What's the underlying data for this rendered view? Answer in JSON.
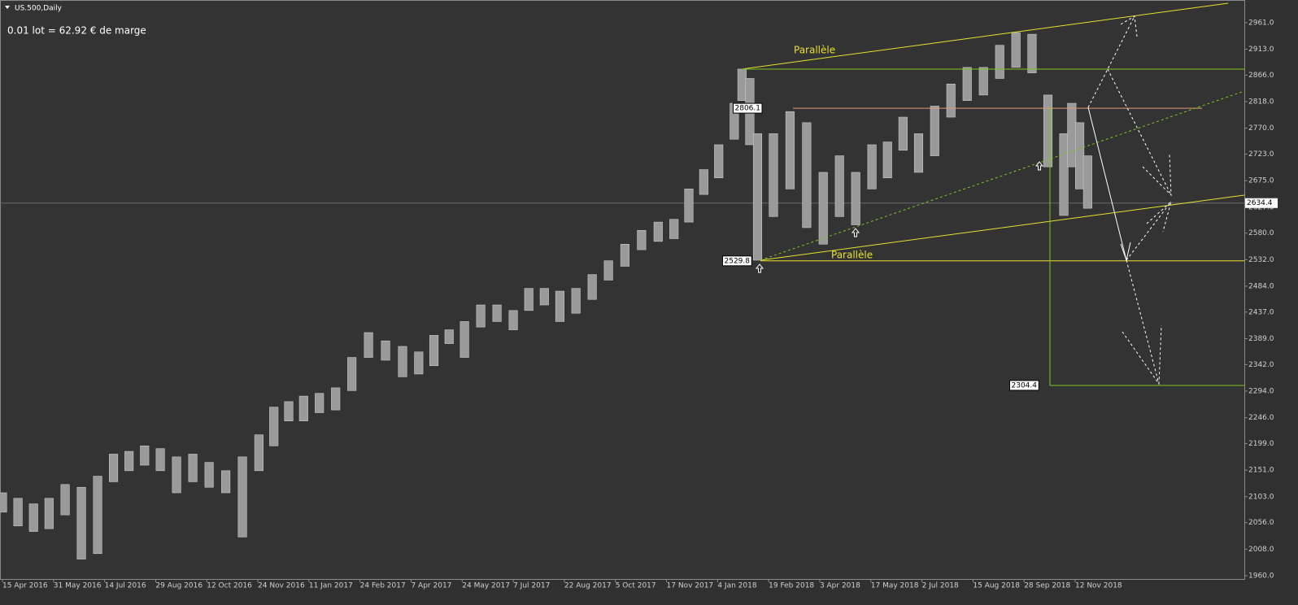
{
  "chart_data": {
    "type": "ohlc",
    "title": "US.500,Daily",
    "subtitle": "0.01 lot = 62.92 € de marge",
    "color": "#9a9a9a",
    "x": [
      "2016-04-15",
      "2016-04-29",
      "2016-05-13",
      "2016-05-27",
      "2016-06-10",
      "2016-06-24",
      "2016-07-08",
      "2016-07-22",
      "2016-08-05",
      "2016-08-19",
      "2016-09-02",
      "2016-09-16",
      "2016-09-30",
      "2016-10-14",
      "2016-10-28",
      "2016-11-11",
      "2016-11-25",
      "2016-12-09",
      "2016-12-23",
      "2017-01-06",
      "2017-01-20",
      "2017-02-03",
      "2017-02-17",
      "2017-03-03",
      "2017-03-17",
      "2017-03-31",
      "2017-04-14",
      "2017-04-28",
      "2017-05-12",
      "2017-05-26",
      "2017-06-09",
      "2017-06-23",
      "2017-07-07",
      "2017-07-21",
      "2017-08-04",
      "2017-08-18",
      "2017-09-01",
      "2017-09-15",
      "2017-09-29",
      "2017-10-13",
      "2017-10-27",
      "2017-11-10",
      "2017-11-24",
      "2017-12-08",
      "2017-12-22",
      "2018-01-05",
      "2018-01-19",
      "2018-01-26",
      "2018-02-02",
      "2018-02-09",
      "2018-02-23",
      "2018-03-09",
      "2018-03-23",
      "2018-04-06",
      "2018-04-20",
      "2018-05-04",
      "2018-05-18",
      "2018-06-01",
      "2018-06-15",
      "2018-06-29",
      "2018-07-13",
      "2018-07-27",
      "2018-08-10",
      "2018-08-24",
      "2018-09-07",
      "2018-09-21",
      "2018-10-05",
      "2018-10-19",
      "2018-11-02",
      "2018-11-09",
      "2018-11-16",
      "2018-11-23"
    ],
    "high": [
      2110,
      2100,
      2090,
      2100,
      2125,
      2120,
      2140,
      2180,
      2185,
      2195,
      2190,
      2175,
      2180,
      2165,
      2150,
      2175,
      2215,
      2265,
      2275,
      2285,
      2290,
      2300,
      2355,
      2400,
      2385,
      2375,
      2365,
      2395,
      2405,
      2420,
      2450,
      2450,
      2440,
      2480,
      2480,
      2475,
      2480,
      2505,
      2530,
      2560,
      2585,
      2600,
      2605,
      2660,
      2695,
      2740,
      2815,
      2877,
      2860,
      2760,
      2760,
      2800,
      2780,
      2690,
      2720,
      2690,
      2740,
      2745,
      2790,
      2760,
      2810,
      2850,
      2880,
      2880,
      2920,
      2943,
      2940,
      2830,
      2760,
      2815,
      2780,
      2720
    ],
    "low": [
      2075,
      2050,
      2040,
      2045,
      2070,
      1990,
      2000,
      2130,
      2150,
      2160,
      2150,
      2110,
      2130,
      2120,
      2110,
      2030,
      2150,
      2195,
      2240,
      2240,
      2255,
      2260,
      2295,
      2355,
      2350,
      2320,
      2325,
      2340,
      2380,
      2355,
      2410,
      2420,
      2405,
      2440,
      2450,
      2420,
      2435,
      2460,
      2495,
      2520,
      2550,
      2565,
      2570,
      2600,
      2650,
      2680,
      2750,
      2820,
      2740,
      2531,
      2610,
      2660,
      2590,
      2560,
      2610,
      2595,
      2660,
      2680,
      2730,
      2690,
      2720,
      2790,
      2820,
      2830,
      2860,
      2880,
      2870,
      2700,
      2612,
      2700,
      2660,
      2625
    ],
    "ylim": [
      1954,
      3002
    ],
    "yticks": [
      {
        "value": 2961,
        "label": "2961.0"
      },
      {
        "value": 2913,
        "label": "2913.0"
      },
      {
        "value": 2866,
        "label": "2866.0"
      },
      {
        "value": 2818,
        "label": "2818.0"
      },
      {
        "value": 2770,
        "label": "2770.0"
      },
      {
        "value": 2723,
        "label": "2723.0"
      },
      {
        "value": 2675,
        "label": "2675.0"
      },
      {
        "value": 2627,
        "label": "2627.0"
      },
      {
        "value": 2580,
        "label": "2580.0"
      },
      {
        "value": 2532,
        "label": "2532.0"
      },
      {
        "value": 2484,
        "label": "2484.0"
      },
      {
        "value": 2437,
        "label": "2437.0"
      },
      {
        "value": 2389,
        "label": "2389.0"
      },
      {
        "value": 2342,
        "label": "2342.0"
      },
      {
        "value": 2294,
        "label": "2294.0"
      },
      {
        "value": 2246,
        "label": "2246.0"
      },
      {
        "value": 2199,
        "label": "2199.0"
      },
      {
        "value": 2151,
        "label": "2151.0"
      },
      {
        "value": 2103,
        "label": "2103.0"
      },
      {
        "value": 2056,
        "label": "2056.0"
      },
      {
        "value": 2008,
        "label": "2008.0"
      },
      {
        "value": 1960,
        "label": "1960.0"
      }
    ],
    "xticks": [
      {
        "value": "2016-04-15",
        "label": "15 Apr 2016"
      },
      {
        "value": "2016-05-31",
        "label": "31 May 2016"
      },
      {
        "value": "2016-07-14",
        "label": "14 Jul 2016"
      },
      {
        "value": "2016-08-29",
        "label": "29 Aug 2016"
      },
      {
        "value": "2016-10-12",
        "label": "12 Oct 2016"
      },
      {
        "value": "2016-11-24",
        "label": "24 Nov 2016"
      },
      {
        "value": "2017-01-11",
        "label": "11 Jan 2017"
      },
      {
        "value": "2017-02-24",
        "label": "24 Feb 2017"
      },
      {
        "value": "2017-04-07",
        "label": "7 Apr 2017"
      },
      {
        "value": "2017-05-24",
        "label": "24 May 2017"
      },
      {
        "value": "2017-07-07",
        "label": "7 Jul 2017"
      },
      {
        "value": "2017-08-22",
        "label": "22 Aug 2017"
      },
      {
        "value": "2017-10-05",
        "label": "5 Oct 2017"
      },
      {
        "value": "2017-11-17",
        "label": "17 Nov 2017"
      },
      {
        "value": "2018-01-04",
        "label": "4 Jan 2018"
      },
      {
        "value": "2018-02-19",
        "label": "19 Feb 2018"
      },
      {
        "value": "2018-04-03",
        "label": "3 Apr 2018"
      },
      {
        "value": "2018-05-17",
        "label": "17 May 2018"
      },
      {
        "value": "2018-07-02",
        "label": "2 Jul 2018"
      },
      {
        "value": "2018-08-15",
        "label": "15 Aug 2018"
      },
      {
        "value": "2018-09-28",
        "label": "28 Sep 2018"
      },
      {
        "value": "2018-11-12",
        "label": "12 Nov 2018"
      }
    ],
    "current_price": 2634.4,
    "levels": [
      {
        "value": 2806.1,
        "color": "#e39b74"
      },
      {
        "value": 2529.8,
        "color": "#e8e030"
      },
      {
        "value": 2304.4,
        "color": "#7cc520"
      }
    ],
    "annotations": [
      "Parallèle",
      "Parallèle"
    ]
  }
}
